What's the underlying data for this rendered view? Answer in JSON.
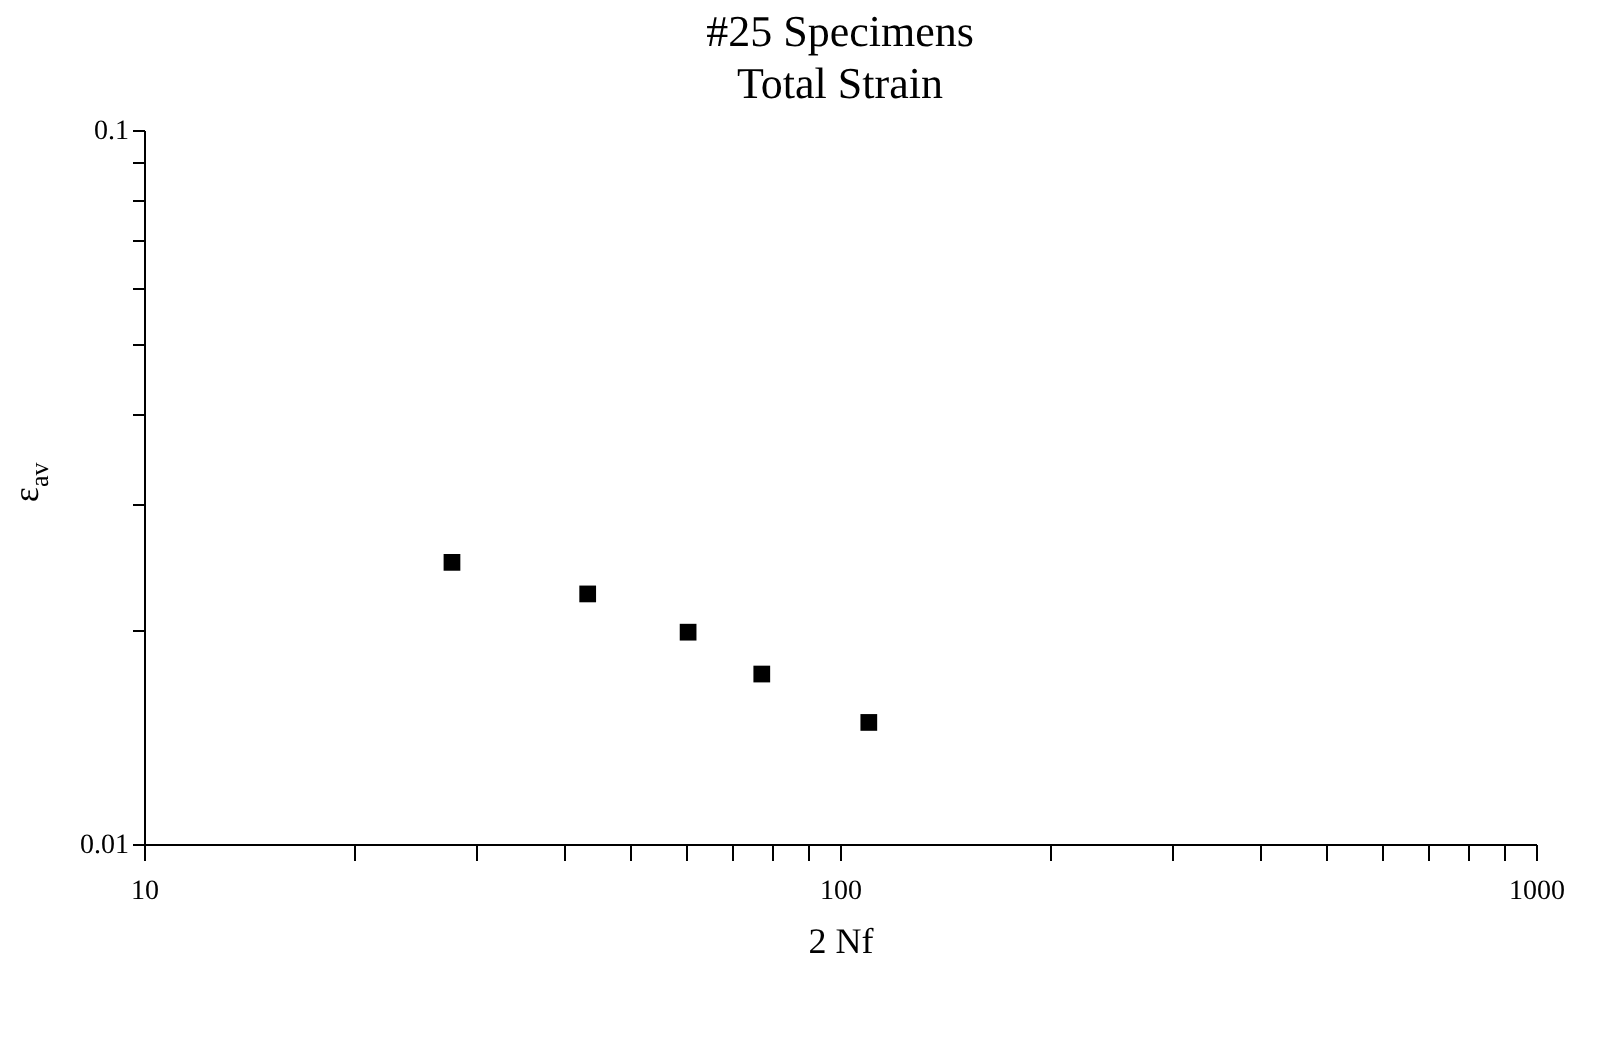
{
  "chart_data": {
    "type": "scatter",
    "title": "#25 Specimens",
    "subtitle": "Total Strain",
    "xlabel": "2 Nf",
    "ylabel": "ε$_{av}$",
    "x": [
      27.7,
      43.4,
      60.5,
      77.2,
      110
    ],
    "series": [
      {
        "color": "#000000",
        "values": [
          0.0248,
          0.0224,
          0.0198,
          0.0173,
          0.0148
        ]
      }
    ],
    "log": "xy",
    "xlim": [
      10,
      1000
    ],
    "ylim": [
      0.01,
      0.1
    ],
    "xticks": [
      10,
      {
        "value": 20,
        "label": null
      },
      {
        "value": 30,
        "label": null
      },
      {
        "value": 40,
        "label": null
      },
      {
        "value": 50,
        "label": null
      },
      {
        "value": 60,
        "label": null
      },
      {
        "value": 70,
        "label": null
      },
      {
        "value": 80,
        "label": null
      },
      {
        "value": 90,
        "label": null
      },
      100,
      {
        "value": 200,
        "label": null
      },
      {
        "value": 300,
        "label": null
      },
      {
        "value": 400,
        "label": null
      },
      {
        "value": 500,
        "label": null
      },
      {
        "value": 600,
        "label": null
      },
      {
        "value": 700,
        "label": null
      },
      {
        "value": 800,
        "label": null
      },
      {
        "value": 900,
        "label": null
      },
      1000
    ],
    "yticks": [
      0.01,
      {
        "value": 0.02,
        "label": null
      },
      {
        "value": 0.03,
        "label": null
      },
      {
        "value": 0.04,
        "label": null
      },
      {
        "value": 0.05,
        "label": null
      },
      {
        "value": 0.06,
        "label": null
      },
      {
        "value": 0.07,
        "label": null
      },
      {
        "value": 0.08,
        "label": null
      },
      {
        "value": 0.09,
        "label": null
      },
      0.1
    ],
    "grid": false,
    "marker": "square"
  }
}
